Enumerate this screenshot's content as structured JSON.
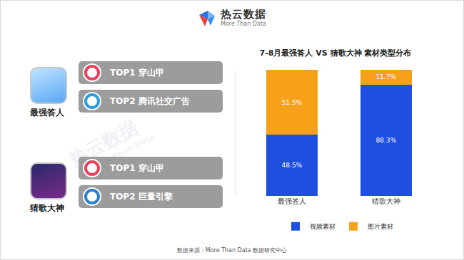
{
  "header": {
    "title": "热云数据",
    "subtitle": "More Than Data"
  },
  "watermark": {
    "text": "热云数据",
    "subtext": "More Than Data"
  },
  "apps": [
    {
      "name": "最强答人",
      "ranks": [
        {
          "rank": "TOP1",
          "name": "穿山甲"
        },
        {
          "rank": "TOP2",
          "name": "腾讯社交广告"
        }
      ]
    },
    {
      "name": "猜歌大神",
      "ranks": [
        {
          "rank": "TOP1",
          "name": "穿山甲"
        },
        {
          "rank": "TOP2",
          "name": "巨量引擎"
        }
      ]
    }
  ],
  "chart_data": {
    "type": "bar",
    "title": "7-8月最强答人 VS 猜歌大神 素材类型分布",
    "categories": [
      "最强答人",
      "猜歌大神"
    ],
    "series": [
      {
        "name": "视频素材",
        "color": "#1f4fe0",
        "values": [
          48.5,
          88.3
        ],
        "value_labels": [
          "48.5%",
          "88.3%"
        ]
      },
      {
        "name": "图片素材",
        "color": "#f7a11a",
        "values": [
          51.5,
          11.7
        ],
        "value_labels": [
          "51.5%",
          "11.7%"
        ]
      }
    ],
    "stacked": true,
    "data_labels": true,
    "ylim": [
      0,
      100
    ],
    "tick_labels": "x",
    "grid": false,
    "legend": "bottom"
  },
  "source": "数据来源：More Than Data 数据研究中心"
}
